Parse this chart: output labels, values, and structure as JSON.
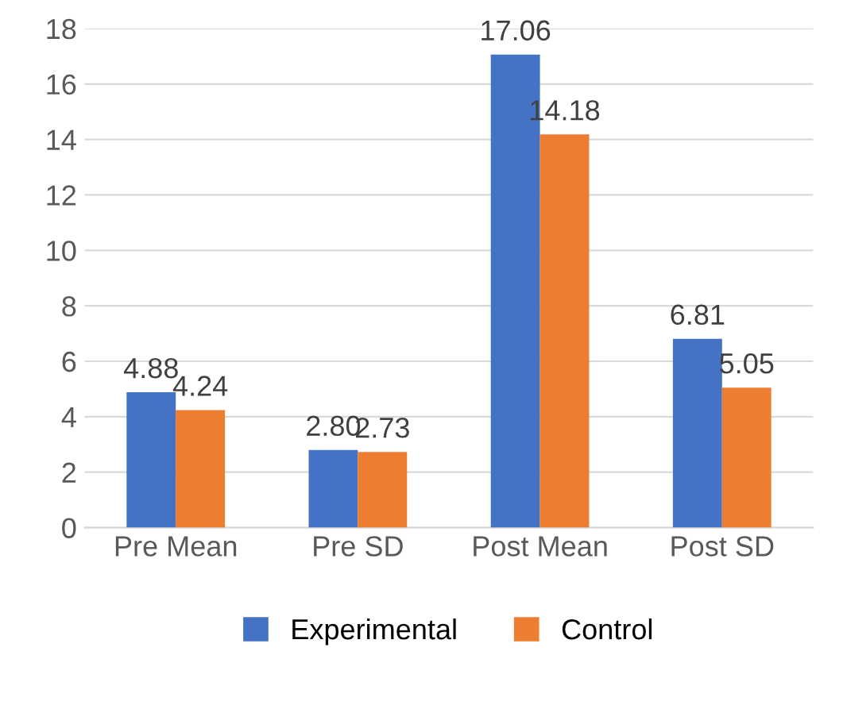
{
  "chart_data": {
    "type": "bar",
    "categories": [
      "Pre Mean",
      "Pre SD",
      "Post Mean",
      "Post SD"
    ],
    "series": [
      {
        "name": "Experimental",
        "color": "#4472c4",
        "values": [
          4.88,
          2.8,
          17.06,
          6.81
        ],
        "value_labels": [
          "4.88",
          "2.80",
          "17.06",
          "6.81"
        ]
      },
      {
        "name": "Control",
        "color": "#ed7d31",
        "values": [
          4.24,
          2.73,
          14.18,
          5.05
        ],
        "value_labels": [
          "4.24",
          "2.73",
          "14.18",
          "5.05"
        ]
      }
    ],
    "ylim": [
      0,
      18
    ],
    "yticks": [
      0,
      2,
      4,
      6,
      8,
      10,
      12,
      14,
      16,
      18
    ],
    "grid": "y",
    "legend": "bottom"
  }
}
